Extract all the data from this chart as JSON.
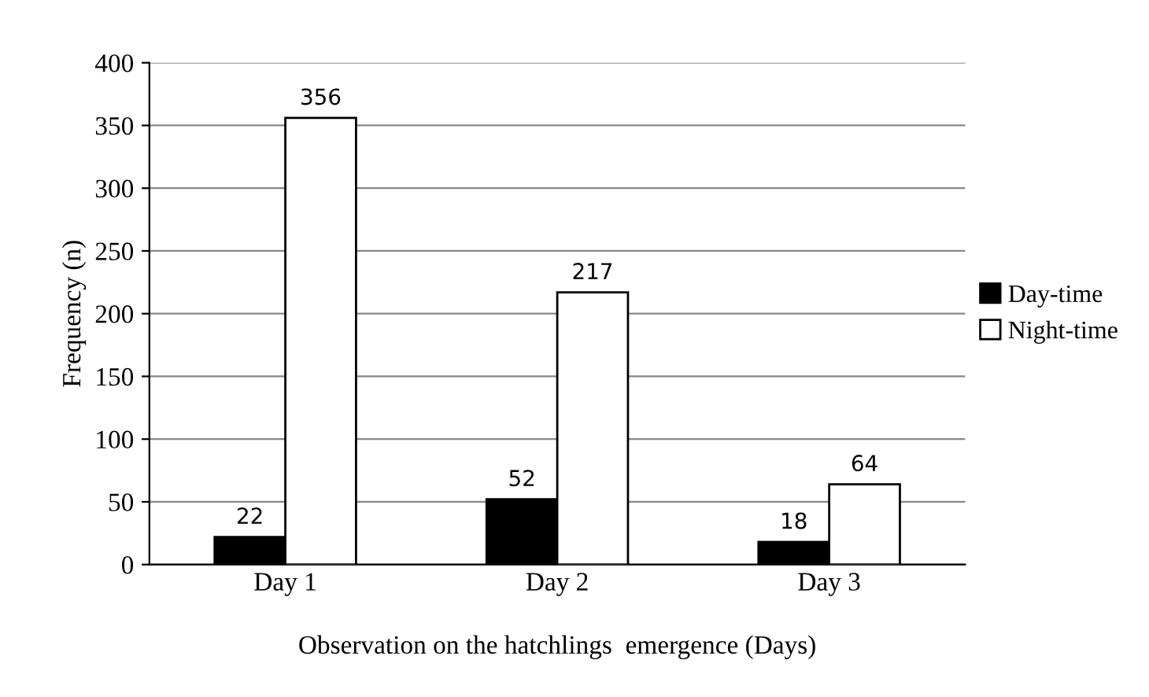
{
  "chart_data": {
    "type": "bar",
    "xlabel": "Observation on the hatchlings  emergence (Days)",
    "ylabel": "Frequency (n)",
    "categories": [
      "Day 1",
      "Day 2",
      "Day 3"
    ],
    "series": [
      {
        "name": "Day-time",
        "color": "#000000",
        "values": [
          22,
          52,
          18
        ]
      },
      {
        "name": "Night-time",
        "color": "#ffffff",
        "values": [
          356,
          217,
          64
        ]
      }
    ],
    "ylim": [
      0,
      400
    ],
    "yticks": [
      0,
      50,
      100,
      150,
      200,
      250,
      300,
      350,
      400
    ],
    "grid": "y",
    "legend": "right",
    "data_labels": true
  }
}
